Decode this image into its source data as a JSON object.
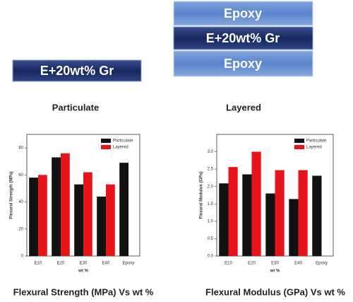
{
  "diagram": {
    "particulate": {
      "layer": "E+20wt% Gr",
      "label": "Particulate"
    },
    "layered": {
      "layers": [
        "Epoxy",
        "E+20wt% Gr",
        "Epoxy"
      ],
      "label": "Layered"
    }
  },
  "chart_data": [
    {
      "type": "bar",
      "caption": "Flexural Strength  (MPa) Vs wt %",
      "y_label": "Flexural Strength (MPa)",
      "x_label": "wt %",
      "categories": [
        "E10",
        "E20",
        "E30",
        "E40",
        "Epoxy"
      ],
      "series": [
        {
          "name": "Particulate",
          "color": "#111111",
          "values": [
            58,
            73,
            53,
            44,
            69
          ]
        },
        {
          "name": "Layered",
          "color": "#e8141c",
          "values": [
            60,
            76,
            62,
            53,
            null
          ]
        }
      ],
      "ylim": [
        0,
        90
      ],
      "yticks": [
        0,
        20,
        40,
        60,
        80
      ],
      "legend": "upper right"
    },
    {
      "type": "bar",
      "caption": "Flexural Modulus (GPa) Vs wt  %",
      "y_label": "Flexural Modulus (GPa)",
      "x_label": "wt %",
      "categories": [
        "E10",
        "E20",
        "E30",
        "E40",
        "Epoxy"
      ],
      "series": [
        {
          "name": "Particulate",
          "color": "#111111",
          "values": [
            2.09,
            2.35,
            1.8,
            1.64,
            2.31
          ]
        },
        {
          "name": "Layered",
          "color": "#e8141c",
          "values": [
            2.56,
            3.0,
            2.47,
            2.47,
            null
          ]
        }
      ],
      "ylim": [
        0,
        3.5
      ],
      "yticks": [
        {
          "value": 0,
          "label": "0.0"
        },
        {
          "value": 0.5,
          "label": "0.5"
        },
        {
          "value": 1,
          "label": "1.0"
        },
        {
          "value": 1.5,
          "label": "1.5"
        },
        {
          "value": 2,
          "label": "2.0"
        },
        {
          "value": 2.5,
          "label": "2.5"
        },
        {
          "value": 3,
          "label": "3.0"
        }
      ],
      "legend": "upper right"
    }
  ]
}
